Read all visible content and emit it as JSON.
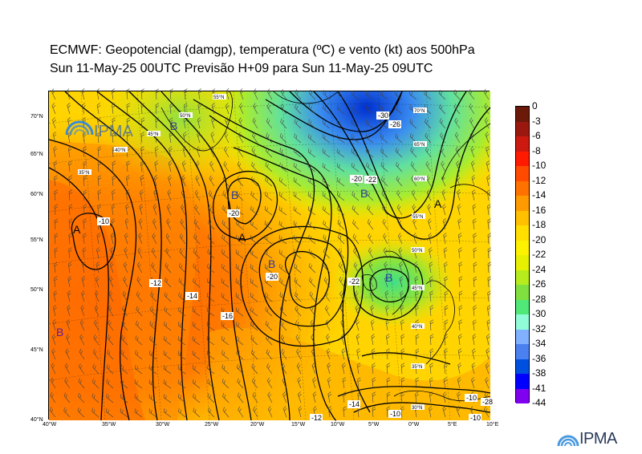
{
  "header": {
    "line1": "ECMWF:  Geopotencial (damgp), temperatura (ºC) e vento (kt) aos 500hPa",
    "line2": "Sun 11-May-25 00UTC Previsão H+09 para Sun 11-May-25 09UTC"
  },
  "map": {
    "lat_labels": [
      "70°N",
      "65°N",
      "60°N",
      "55°N",
      "50°N",
      "45°N",
      "40°N"
    ],
    "lon_labels": [
      "40°W",
      "35°W",
      "30°W",
      "25°W",
      "20°W",
      "15°W",
      "10°W",
      "5°W",
      "0°W",
      "5°E",
      "10°E"
    ],
    "pressure_centers": [
      {
        "label": "B"
      },
      {
        "label": "B"
      },
      {
        "label": "B"
      },
      {
        "label": "B"
      },
      {
        "label": "B"
      },
      {
        "label": "A"
      },
      {
        "label": "A"
      },
      {
        "label": "A"
      }
    ],
    "contour_labels": [
      "-10",
      "-12",
      "-14",
      "-16",
      "-20",
      "-20",
      "-22",
      "-22",
      "-26",
      "-30",
      "-10",
      "-14",
      "-12",
      "-10",
      "-10",
      "-20",
      "-28"
    ],
    "inner_logo_text": "IPMA",
    "inner_grid_labels": [
      "50°N",
      "45°N",
      "40°N",
      "35°N",
      "55°N",
      "70°N",
      "65°N",
      "60°N",
      "55°N",
      "50°N",
      "45°N",
      "40°N",
      "35°N",
      "30°N"
    ]
  },
  "legend": {
    "ticks": [
      "0",
      "-3",
      "-6",
      "-8",
      "-10",
      "-12",
      "-14",
      "-16",
      "-18",
      "-20",
      "-22",
      "-24",
      "-26",
      "-28",
      "-30",
      "-32",
      "-34",
      "-36",
      "-38",
      "-41",
      "-44"
    ],
    "colors": [
      "#6b1a0a",
      "#9a1810",
      "#cc1a10",
      "#ff1a00",
      "#ff4a00",
      "#ff7200",
      "#ff9a00",
      "#ffc000",
      "#ffde00",
      "#fff200",
      "#e6f000",
      "#b6ec1c",
      "#80e040",
      "#50e878",
      "#90fcd8",
      "#80b0ff",
      "#4a80f0",
      "#0050e0",
      "#0000ff",
      "#8000f0",
      "#ff00ff"
    ]
  },
  "logo": {
    "text": "IPMA"
  }
}
